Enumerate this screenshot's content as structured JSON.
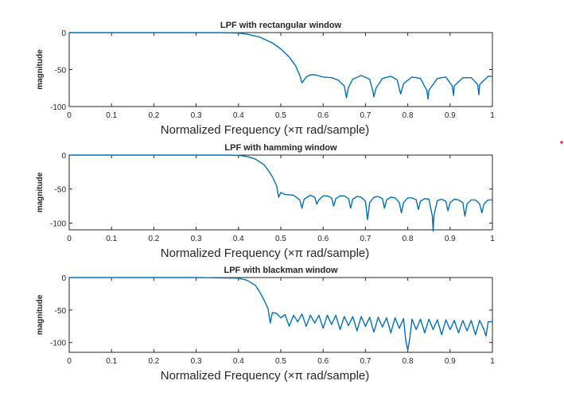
{
  "chart_data": [
    {
      "type": "line",
      "title": "LPF with rectangular window",
      "xlabel": "Normalized  Frequency  (×π  rad/sample)",
      "ylabel": "magnitude",
      "xlim": [
        0,
        1
      ],
      "ylim": [
        -100,
        0
      ],
      "xticks": [
        "0",
        "0.1",
        "0.2",
        "0.3",
        "0.4",
        "0.5",
        "0.6",
        "0.7",
        "0.8",
        "0.9",
        "1"
      ],
      "yticks": [
        "0",
        "-50",
        "-100"
      ],
      "series": [
        {
          "color": "#0072bd",
          "x": [
            0,
            0.05,
            0.1,
            0.15,
            0.2,
            0.25,
            0.3,
            0.35,
            0.4,
            0.42,
            0.45,
            0.48,
            0.5,
            0.52,
            0.535,
            0.545,
            0.55,
            0.56,
            0.57,
            0.58,
            0.6,
            0.62,
            0.635,
            0.65,
            0.655,
            0.66,
            0.67,
            0.69,
            0.71,
            0.718,
            0.72,
            0.725,
            0.74,
            0.76,
            0.775,
            0.783,
            0.79,
            0.81,
            0.83,
            0.845,
            0.848,
            0.85,
            0.87,
            0.89,
            0.905,
            0.908,
            0.91,
            0.93,
            0.95,
            0.965,
            0.968,
            0.97,
            0.99,
            1.0
          ],
          "y": [
            0,
            0,
            0,
            0,
            0,
            0,
            0,
            0,
            -0.5,
            -2,
            -6,
            -14,
            -22,
            -33,
            -45,
            -58,
            -68,
            -60,
            -57,
            -57,
            -60,
            -61,
            -64,
            -72,
            -88,
            -74,
            -63,
            -58,
            -63,
            -80,
            -87,
            -75,
            -62,
            -59,
            -64,
            -83,
            -69,
            -60,
            -62,
            -78,
            -90,
            -78,
            -62,
            -60,
            -72,
            -85,
            -72,
            -61,
            -61,
            -70,
            -84,
            -70,
            -59,
            -59
          ]
        }
      ]
    },
    {
      "type": "line",
      "title": "LPF with hamming window",
      "xlabel": "Normalized  Frequency  (×π  rad/sample)",
      "ylabel": "magnitude",
      "xlim": [
        0,
        1
      ],
      "ylim": [
        -110,
        0
      ],
      "xticks": [
        "0",
        "0.1",
        "0.2",
        "0.3",
        "0.4",
        "0.5",
        "0.6",
        "0.7",
        "0.8",
        "0.9",
        "1"
      ],
      "yticks": [
        "0",
        "-50",
        "-100"
      ],
      "series": [
        {
          "color": "#0072bd",
          "x": [
            0,
            0.1,
            0.2,
            0.3,
            0.38,
            0.4,
            0.42,
            0.44,
            0.46,
            0.47,
            0.48,
            0.49,
            0.495,
            0.5,
            0.51,
            0.53,
            0.545,
            0.55,
            0.555,
            0.57,
            0.58,
            0.585,
            0.59,
            0.6,
            0.61,
            0.62,
            0.625,
            0.63,
            0.64,
            0.65,
            0.66,
            0.665,
            0.67,
            0.68,
            0.69,
            0.7,
            0.705,
            0.71,
            0.72,
            0.73,
            0.74,
            0.745,
            0.75,
            0.76,
            0.77,
            0.78,
            0.785,
            0.79,
            0.8,
            0.81,
            0.82,
            0.825,
            0.83,
            0.84,
            0.85,
            0.858,
            0.86,
            0.862,
            0.87,
            0.88,
            0.89,
            0.895,
            0.9,
            0.91,
            0.92,
            0.93,
            0.935,
            0.94,
            0.95,
            0.96,
            0.97,
            0.975,
            0.98,
            0.99,
            1.0
          ],
          "y": [
            0,
            0,
            0,
            0,
            0,
            -0.3,
            -2,
            -6,
            -14,
            -22,
            -32,
            -45,
            -62,
            -55,
            -58,
            -59,
            -66,
            -78,
            -65,
            -59,
            -62,
            -72,
            -66,
            -60,
            -60,
            -63,
            -75,
            -64,
            -60,
            -60,
            -64,
            -78,
            -65,
            -61,
            -62,
            -68,
            -95,
            -70,
            -62,
            -61,
            -64,
            -78,
            -66,
            -62,
            -63,
            -70,
            -85,
            -70,
            -63,
            -63,
            -66,
            -80,
            -68,
            -64,
            -65,
            -90,
            -112,
            -88,
            -67,
            -65,
            -68,
            -82,
            -70,
            -65,
            -66,
            -70,
            -90,
            -72,
            -66,
            -66,
            -72,
            -85,
            -72,
            -66,
            -66
          ]
        }
      ]
    },
    {
      "type": "line",
      "title": "LPF with blackman window",
      "xlabel": "Normalized  Frequency  (×π  rad/sample)",
      "ylabel": "magnitude",
      "xlim": [
        0,
        1
      ],
      "ylim": [
        -115,
        0
      ],
      "xticks": [
        "0",
        "0.1",
        "0.2",
        "0.3",
        "0.4",
        "0.5",
        "0.6",
        "0.7",
        "0.8",
        "0.9",
        "1"
      ],
      "yticks": [
        "0",
        "-50",
        "-100"
      ],
      "series": [
        {
          "color": "#0072bd",
          "x": [
            0,
            0.1,
            0.2,
            0.3,
            0.4,
            0.42,
            0.44,
            0.45,
            0.46,
            0.47,
            0.475,
            0.48,
            0.49,
            0.5,
            0.51,
            0.52,
            0.53,
            0.54,
            0.55,
            0.56,
            0.57,
            0.58,
            0.59,
            0.6,
            0.61,
            0.62,
            0.63,
            0.64,
            0.65,
            0.66,
            0.67,
            0.68,
            0.69,
            0.7,
            0.71,
            0.72,
            0.73,
            0.74,
            0.75,
            0.76,
            0.77,
            0.78,
            0.79,
            0.795,
            0.8,
            0.805,
            0.81,
            0.82,
            0.83,
            0.84,
            0.85,
            0.86,
            0.87,
            0.88,
            0.89,
            0.9,
            0.91,
            0.92,
            0.93,
            0.94,
            0.95,
            0.96,
            0.97,
            0.98,
            0.985,
            0.99,
            1.0
          ],
          "y": [
            0,
            0,
            0,
            0,
            -1,
            -4,
            -12,
            -22,
            -34,
            -48,
            -70,
            -54,
            -55,
            -62,
            -57,
            -75,
            -58,
            -68,
            -56,
            -75,
            -58,
            -70,
            -58,
            -78,
            -58,
            -72,
            -58,
            -80,
            -60,
            -74,
            -60,
            -82,
            -60,
            -75,
            -61,
            -84,
            -61,
            -76,
            -62,
            -85,
            -62,
            -78,
            -63,
            -95,
            -112,
            -92,
            -64,
            -80,
            -64,
            -85,
            -64,
            -80,
            -65,
            -88,
            -65,
            -80,
            -66,
            -85,
            -66,
            -82,
            -66,
            -88,
            -66,
            -80,
            -90,
            -68,
            -68
          ]
        }
      ]
    }
  ]
}
